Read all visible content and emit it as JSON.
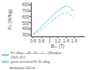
{
  "chart_data": {
    "type": "line",
    "xlabel": "Bₘ (T)",
    "ylabel": "Pₒ (W/kg)",
    "x": [
      0.6,
      0.7,
      0.8,
      0.9,
      1.0,
      1.1,
      1.2,
      1.3,
      1.38,
      1.43,
      1.48,
      1.53,
      1.58
    ],
    "series": [
      {
        "name": "Fe alloy₀.₈₁B₁.₂Si₀.₈C₀.₂ (Metglas 2605-SC)",
        "color": "#7ecfef",
        "line_style": "solid",
        "values": [
          310,
          365,
          430,
          500,
          568,
          635,
          693,
          742,
          768,
          773,
          762,
          735,
          695
        ]
      },
      {
        "name": "grain-oriented Fe-Si alloy",
        "color": "#7ecfef",
        "line_style": "dashed",
        "values": [
          298,
          338,
          385,
          440,
          498,
          555,
          606,
          645,
          665,
          662,
          645,
          615,
          578
        ]
      }
    ],
    "annotations": [
      "thickness 100 m"
    ],
    "xlim": [
      0.55,
      1.85
    ],
    "xticks": [
      0.6,
      0.8,
      1,
      1.2,
      1.4,
      1.6
    ],
    "ylim": [
      275,
      830
    ],
    "yticks": [
      300,
      400,
      500,
      600,
      700,
      800
    ],
    "grid": false,
    "legend": "bottom"
  }
}
